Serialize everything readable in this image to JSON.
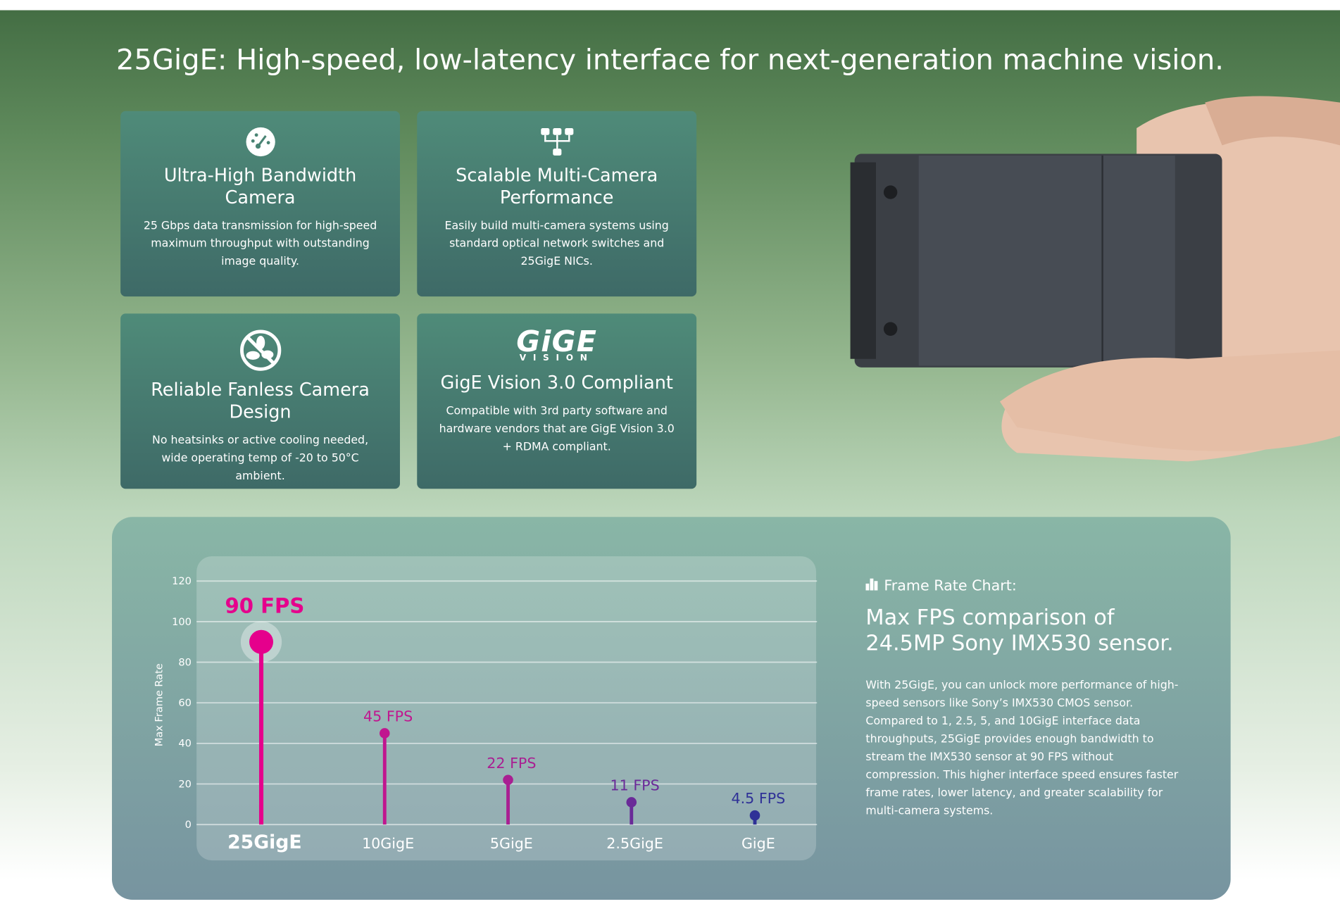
{
  "header": {
    "title": "25GigE: High-speed, low-latency interface for next-generation machine vision."
  },
  "features": [
    {
      "title": "Ultra-High Bandwidth Camera",
      "text": "25 Gbps data transmission for high-speed maximum throughput with outstanding image quality."
    },
    {
      "title": "Scalable Multi-Camera Performance",
      "text": "Easily build multi-camera systems using standard optical network switches and 25GigE NICs."
    },
    {
      "title": "Reliable Fanless Camera Design",
      "text": "No heatsinks or active cooling needed, wide operating temp of -20 to 50°C ambient."
    },
    {
      "title": "GigE Vision 3.0 Compliant",
      "text": "Compatible with 3rd party software and hardware vendors that are GigE Vision 3.0 + RDMA compliant.",
      "logo": {
        "main": "GiGE",
        "sub": "VISION"
      }
    }
  ],
  "chart_panel": {
    "label": "Frame Rate Chart:",
    "title": "Max FPS comparison of 24.5MP Sony IMX530 sensor.",
    "text": "With 25GigE, you can unlock more performance of high-speed sensors like Sony’s IMX530 CMOS sensor. Compared to 1, 2.5, 5, and 10GigE interface data throughputs, 25GigE provides enough bandwidth to stream the IMX530 sensor at 90 FPS without compression. This higher interface speed ensures faster frame rates, lower latency, and greater scalability for multi-camera systems."
  },
  "chart_data": {
    "type": "lollipop",
    "y_label": "Max Frame Rate",
    "categories": [
      "25GigE",
      "10GigE",
      "5GigE",
      "2.5GigE",
      "GigE"
    ],
    "values": [
      90,
      45,
      22,
      11,
      4.5
    ],
    "value_labels": [
      "90 FPS",
      "45 FPS",
      "22 FPS",
      "11 FPS",
      "4.5 FPS"
    ],
    "colors": [
      "#e5008c",
      "#c0168f",
      "#a91f92",
      "#6a2a98",
      "#2f3197"
    ],
    "ylim": [
      0,
      120
    ],
    "yticks": [
      0,
      20,
      40,
      60,
      80,
      100,
      120
    ],
    "grid": true
  }
}
